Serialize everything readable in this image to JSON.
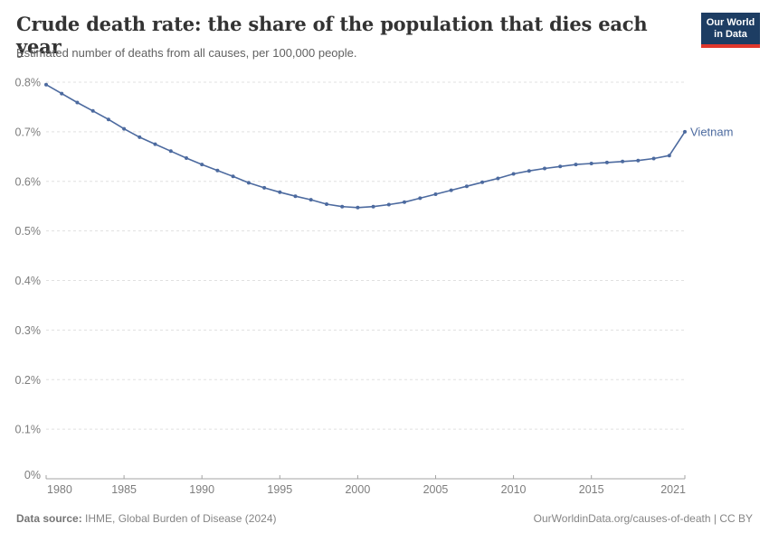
{
  "header": {
    "title": "Crude death rate: the share of the population that dies each year",
    "subtitle": "Estimated number of deaths from all causes, per 100,000 people.",
    "logo": {
      "line1": "Our World",
      "line2": "in Data"
    }
  },
  "chart_data": {
    "type": "line",
    "title": "Crude death rate: the share of the population that dies each year",
    "subtitle": "Estimated number of deaths from all causes, per 100,000 people.",
    "x": [
      1980,
      1981,
      1982,
      1983,
      1984,
      1985,
      1986,
      1987,
      1988,
      1989,
      1990,
      1991,
      1992,
      1993,
      1994,
      1995,
      1996,
      1997,
      1998,
      1999,
      2000,
      2001,
      2002,
      2003,
      2004,
      2005,
      2006,
      2007,
      2008,
      2009,
      2010,
      2011,
      2012,
      2013,
      2014,
      2015,
      2016,
      2017,
      2018,
      2019,
      2020,
      2021
    ],
    "series": [
      {
        "name": "Vietnam",
        "color": "#4c6a9f",
        "values": [
          0.795,
          0.777,
          0.759,
          0.742,
          0.725,
          0.706,
          0.689,
          0.675,
          0.661,
          0.647,
          0.634,
          0.622,
          0.61,
          0.597,
          0.587,
          0.578,
          0.57,
          0.563,
          0.554,
          0.549,
          0.547,
          0.549,
          0.553,
          0.558,
          0.566,
          0.574,
          0.582,
          0.59,
          0.598,
          0.606,
          0.615,
          0.621,
          0.626,
          0.63,
          0.634,
          0.636,
          0.638,
          0.64,
          0.642,
          0.646,
          0.652,
          0.7
        ]
      }
    ],
    "xlabel": "",
    "ylabel": "",
    "xlim": [
      1980,
      2021
    ],
    "ylim": [
      0,
      0.8
    ],
    "xticks": [
      1980,
      1985,
      1990,
      1995,
      2000,
      2005,
      2010,
      2015,
      2021
    ],
    "yticks": [
      0,
      0.1,
      0.2,
      0.3,
      0.4,
      0.5,
      0.6,
      0.7,
      0.8
    ],
    "ytick_labels": [
      "0%",
      "0.1%",
      "0.2%",
      "0.3%",
      "0.4%",
      "0.5%",
      "0.6%",
      "0.7%",
      "0.8%"
    ],
    "grid": "horizontal-dashed",
    "legend_position": "end-of-line-label",
    "end_label": "Vietnam"
  },
  "footer": {
    "source_label": "Data source:",
    "source_text": "IHME, Global Burden of Disease (2024)",
    "attribution": "OurWorldinData.org/causes-of-death | CC BY"
  },
  "colors": {
    "series": "#4c6a9f",
    "gridline": "#e0e0e0",
    "axis": "#a3a3a3",
    "tick_label": "#7d7d7d",
    "title": "#333333",
    "subtitle": "#616161",
    "footer": "#858585",
    "logo_bg": "#1d3d63",
    "logo_accent": "#e0372c",
    "background": "#ffffff"
  }
}
